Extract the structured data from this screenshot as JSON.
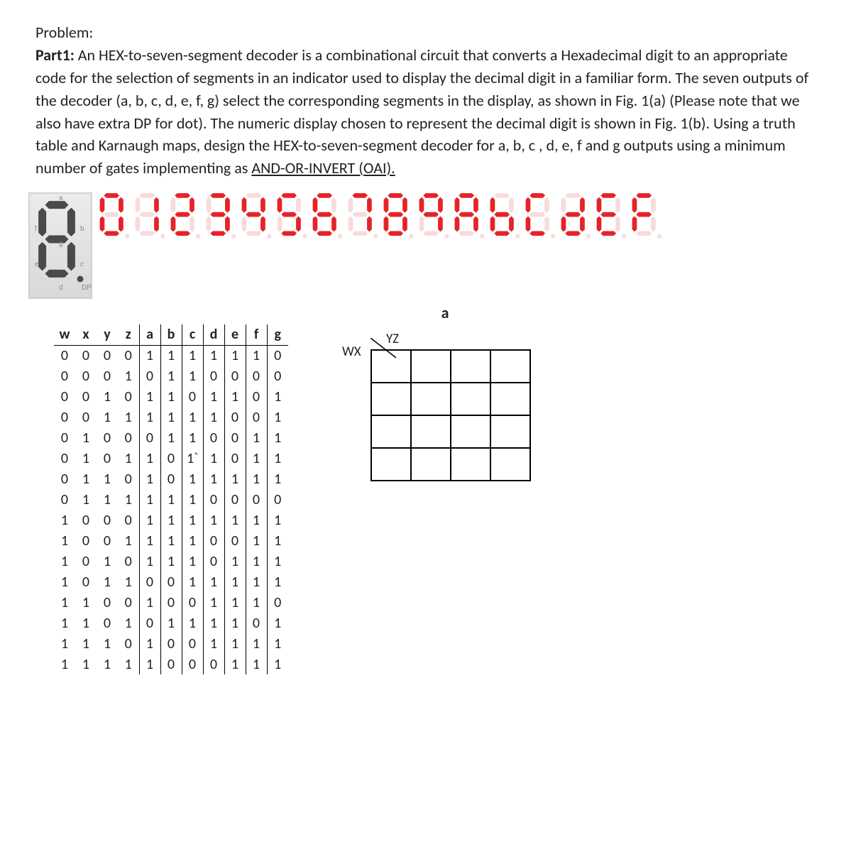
{
  "heading": "Problem:",
  "part_label": "Part1:",
  "body_text": " An HEX-to-seven-segment decoder is a combinational circuit that converts a Hexadecimal digit to an appropriate code for the selection of segments in an indicator used to display the decimal digit in a familiar form. The seven outputs of the decoder (a, b, c, d, e, f, g) select the corresponding segments in the display, as shown in Fig. 1(a) (Please note that we also have extra DP for dot). The numeric display chosen to represent the decimal digit is shown in Fig. 1(b). Using a truth table and Karnaugh maps, design the HEX-to-seven-segment decoder for a, b, c , d, e, f and g outputs using a minimum number of gates implementing as ",
  "underlined_text": "AND-OR-INVERT (OAI).",
  "seg_ref": {
    "on_color": "#4a4a48",
    "off_color": "#d0cfca",
    "labels": [
      "a",
      "b",
      "c",
      "d",
      "e",
      "f",
      "g",
      "DP"
    ]
  },
  "digit_strip": {
    "on_color": "#e62328",
    "off_color": "#f8dbdb",
    "bg": "#ffffff",
    "digits": [
      {
        "label": "0",
        "seg": [
          1,
          1,
          1,
          1,
          1,
          1,
          0
        ]
      },
      {
        "label": "1",
        "seg": [
          0,
          1,
          1,
          0,
          0,
          0,
          0
        ]
      },
      {
        "label": "2",
        "seg": [
          1,
          1,
          0,
          1,
          1,
          0,
          1
        ]
      },
      {
        "label": "3",
        "seg": [
          1,
          1,
          1,
          1,
          0,
          0,
          1
        ]
      },
      {
        "label": "4",
        "seg": [
          0,
          1,
          1,
          0,
          0,
          1,
          1
        ]
      },
      {
        "label": "5",
        "seg": [
          1,
          0,
          1,
          1,
          0,
          1,
          1
        ]
      },
      {
        "label": "6",
        "seg": [
          1,
          0,
          1,
          1,
          1,
          1,
          1
        ]
      },
      {
        "label": "7",
        "seg": [
          1,
          1,
          1,
          0,
          0,
          0,
          0
        ]
      },
      {
        "label": "8",
        "seg": [
          1,
          1,
          1,
          1,
          1,
          1,
          1
        ]
      },
      {
        "label": "9",
        "seg": [
          1,
          1,
          1,
          0,
          0,
          1,
          1
        ]
      },
      {
        "label": "A",
        "seg": [
          1,
          1,
          1,
          0,
          1,
          1,
          1
        ]
      },
      {
        "label": "b",
        "seg": [
          0,
          0,
          1,
          1,
          1,
          1,
          1
        ]
      },
      {
        "label": "C",
        "seg": [
          1,
          0,
          0,
          1,
          1,
          1,
          0
        ]
      },
      {
        "label": "d",
        "seg": [
          0,
          1,
          1,
          1,
          1,
          0,
          1
        ]
      },
      {
        "label": "E",
        "seg": [
          1,
          0,
          0,
          1,
          1,
          1,
          1
        ]
      },
      {
        "label": "F",
        "seg": [
          1,
          0,
          0,
          0,
          1,
          1,
          1
        ]
      }
    ]
  },
  "truth_table": {
    "headers": [
      "w",
      "x",
      "y",
      "z",
      "a",
      "b",
      "c",
      "d",
      "e",
      "f",
      "g"
    ],
    "sep_index": 4,
    "rows": [
      [
        "0",
        "0",
        "0",
        "0",
        "1",
        "1",
        "1",
        "1",
        "1",
        "1",
        "0"
      ],
      [
        "0",
        "0",
        "0",
        "1",
        "0",
        "1",
        "1",
        "0",
        "0",
        "0",
        "0"
      ],
      [
        "0",
        "0",
        "1",
        "0",
        "1",
        "1",
        "0",
        "1",
        "1",
        "0",
        "1"
      ],
      [
        "0",
        "0",
        "1",
        "1",
        "1",
        "1",
        "1",
        "1",
        "0",
        "0",
        "1"
      ],
      [
        "0",
        "1",
        "0",
        "0",
        "0",
        "1",
        "1",
        "0",
        "0",
        "1",
        "1"
      ],
      [
        "0",
        "1",
        "0",
        "1",
        "1",
        "0",
        "1`",
        "1",
        "0",
        "1",
        "1"
      ],
      [
        "0",
        "1",
        "1",
        "0",
        "1",
        "0",
        "1",
        "1",
        "1",
        "1",
        "1"
      ],
      [
        "0",
        "1",
        "1",
        "1",
        "1",
        "1",
        "1",
        "0",
        "0",
        "0",
        "0"
      ],
      [
        "1",
        "0",
        "0",
        "0",
        "1",
        "1",
        "1",
        "1",
        "1",
        "1",
        "1"
      ],
      [
        "1",
        "0",
        "0",
        "1",
        "1",
        "1",
        "1",
        "0",
        "0",
        "1",
        "1"
      ],
      [
        "1",
        "0",
        "1",
        "0",
        "1",
        "1",
        "1",
        "0",
        "1",
        "1",
        "1"
      ],
      [
        "1",
        "0",
        "1",
        "1",
        "0",
        "0",
        "1",
        "1",
        "1",
        "1",
        "1"
      ],
      [
        "1",
        "1",
        "0",
        "0",
        "1",
        "0",
        "0",
        "1",
        "1",
        "1",
        "0"
      ],
      [
        "1",
        "1",
        "0",
        "1",
        "0",
        "1",
        "1",
        "1",
        "1",
        "0",
        "1"
      ],
      [
        "1",
        "1",
        "1",
        "0",
        "1",
        "0",
        "0",
        "1",
        "1",
        "1",
        "1"
      ],
      [
        "1",
        "1",
        "1",
        "1",
        "1",
        "0",
        "0",
        "0",
        "1",
        "1",
        "1"
      ]
    ]
  },
  "kmap": {
    "title": "a",
    "row_label": "WX",
    "col_label": "YZ",
    "rows": 4,
    "cols": 4
  }
}
